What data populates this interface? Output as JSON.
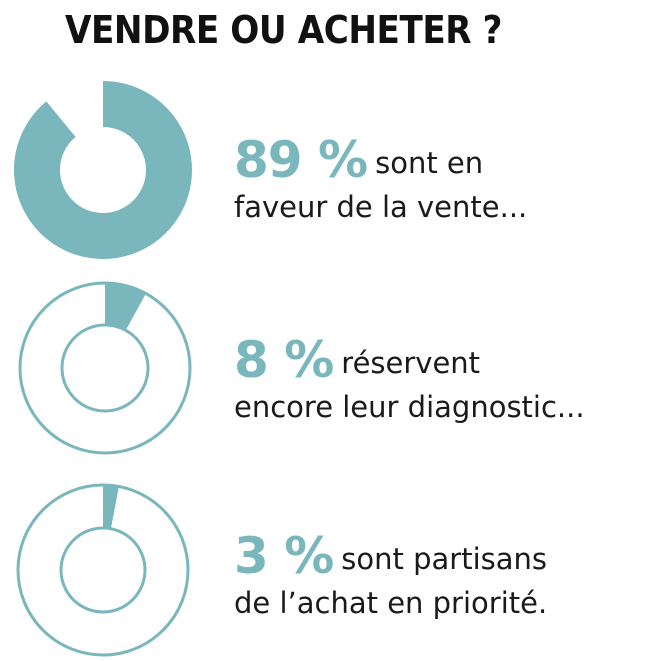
{
  "title": "VENDRE OU ACHETER ?",
  "colors": {
    "accent": "#7ab7bc",
    "text": "#1a1a1a",
    "title": "#111111"
  },
  "chart_data": {
    "type": "donut",
    "items": [
      {
        "value": 89,
        "value_label": "89 %",
        "line1": "sont  en",
        "line2": "faveur de la vente..."
      },
      {
        "value": 8,
        "value_label": "8 %",
        "line1": "réservent",
        "line2": "encore leur diagnostic..."
      },
      {
        "value": 3,
        "value_label": "3 %",
        "line1": "sont partisans",
        "line2": "de l’achat en priorité."
      }
    ]
  }
}
